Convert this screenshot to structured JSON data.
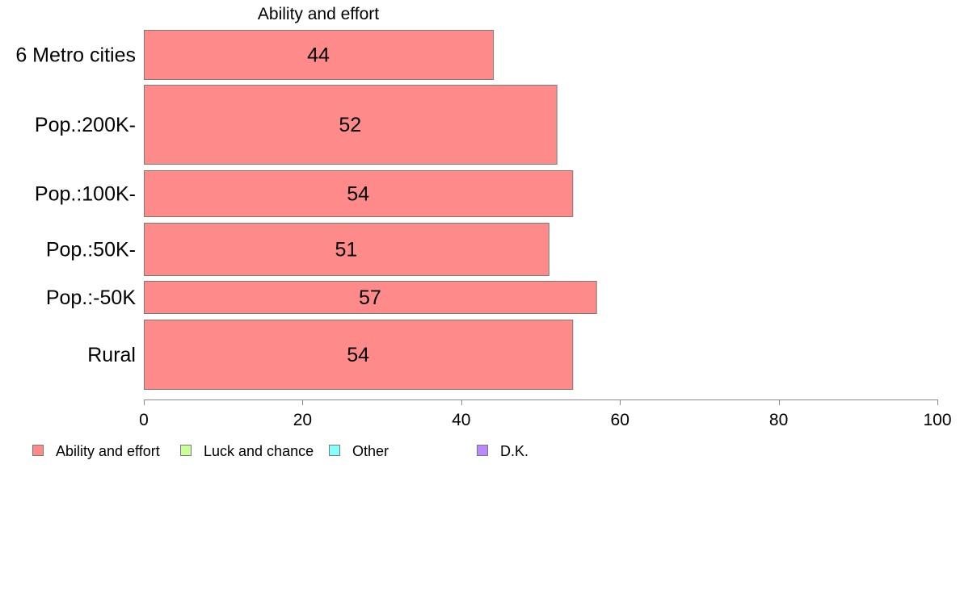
{
  "chart_data": {
    "type": "bar",
    "orientation": "horizontal",
    "title": "Ability and effort",
    "categories": [
      "6 Metro cities",
      "Pop.:200K-",
      "Pop.:100K-",
      "Pop.:50K-",
      "Pop.:-50K",
      "Rural"
    ],
    "series": [
      {
        "name": "Ability and effort",
        "values": [
          44,
          52,
          54,
          51,
          57,
          54
        ]
      }
    ],
    "xlim": [
      0,
      100
    ],
    "xticks": [
      0,
      20,
      40,
      60,
      80,
      100
    ],
    "grid": false,
    "legend_position": "bottom-left",
    "legend": [
      {
        "label": "Ability and effort",
        "color": "#ff8a8a"
      },
      {
        "label": "Luck and chance",
        "color": "#ccff99"
      },
      {
        "label": "Other",
        "color": "#88ffff"
      },
      {
        "label": "D.K.",
        "color": "#bb88ff"
      }
    ]
  }
}
